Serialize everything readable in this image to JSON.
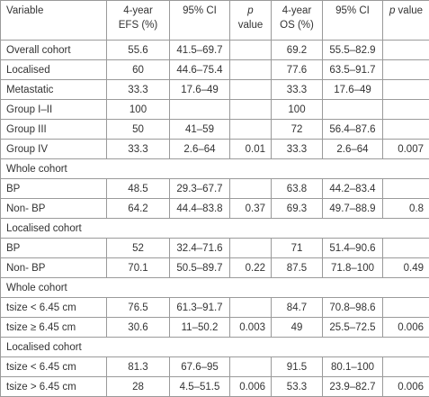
{
  "table": {
    "header": [
      "Variable",
      "4-year EFS (%)",
      "95% CI",
      "p value",
      "4-year OS (%)",
      "95% CI",
      "p value"
    ],
    "rows": [
      [
        "Overall cohort",
        "55.6",
        "41.5–69.7",
        null,
        "69.2",
        "55.5–82.9",
        null
      ],
      [
        "Localised",
        "60",
        "44.6–75.4",
        null,
        "77.6",
        "63.5–91.7",
        null
      ],
      [
        "Metastatic",
        "33.3",
        "17.6–49",
        null,
        "33.3",
        "17.6–49",
        null
      ],
      [
        "Group I–II",
        "100",
        null,
        null,
        "100",
        null,
        null
      ],
      [
        "Group III",
        "50",
        "41–59",
        null,
        "72",
        "56.4–87.6",
        null
      ],
      [
        "Group IV",
        "33.3",
        "2.6–64",
        "0.01",
        "33.3",
        "2.6–64",
        "0.007"
      ],
      [
        "Whole cohort"
      ],
      [
        "BP",
        "48.5",
        "29.3–67.7",
        null,
        "63.8",
        "44.2–83.4",
        null
      ],
      [
        "Non- BP",
        "64.2",
        "44.4–83.8",
        "0.37",
        "69.3",
        "49.7–88.9",
        "0.8"
      ],
      [
        "Localised cohort"
      ],
      [
        "BP",
        "52",
        "32.4–71.6",
        null,
        "71",
        "51.4–90.6",
        null
      ],
      [
        "Non- BP",
        "70.1",
        "50.5–89.7",
        "0.22",
        "87.5",
        "71.8–100",
        "0.49"
      ],
      [
        "Whole cohort"
      ],
      [
        "tsize < 6.45 cm",
        "76.5",
        "61.3–91.7",
        null,
        "84.7",
        "70.8–98.6",
        null
      ],
      [
        "tsize ≥ 6.45 cm",
        "30.6",
        "11–50.2",
        "0.003",
        "49",
        "25.5–72.5",
        "0.006"
      ],
      [
        "Localised cohort"
      ],
      [
        "tsize < 6.45 cm",
        "81.3",
        "67.6–95",
        null,
        "91.5",
        "80.1–100",
        null
      ],
      [
        "tsize > 6.45 cm",
        "28",
        "4.5–51.5",
        "0.006",
        "53.3",
        "23.9–82.7",
        "0.006"
      ]
    ]
  }
}
